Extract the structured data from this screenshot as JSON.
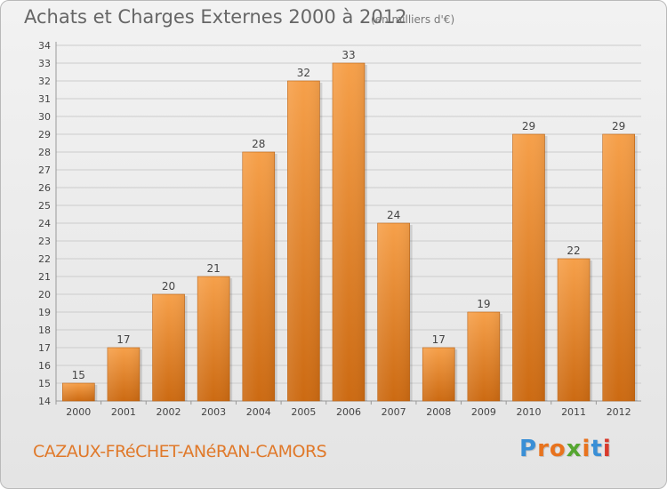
{
  "header": {
    "title": "Achats et Charges Externes 2000 à 2012",
    "subtitle": "(en milliers d'€)"
  },
  "footer": {
    "town": "CAZAUX-FRéCHET-ANéRAN-CAMORS",
    "logo_text": "Proxiti",
    "logo_colors": [
      "#3a8fd6",
      "#e8731e",
      "#e8731e",
      "#55a630",
      "#e8731e",
      "#3a8fd6",
      "#d83a2c"
    ]
  },
  "colors": {
    "bar_top": "#f6a04a",
    "bar_bottom": "#cc6a12",
    "grid": "#cccccc",
    "axis_text": "#444444"
  },
  "chart_data": {
    "type": "bar",
    "title": "Achats et Charges Externes 2000 à 2012",
    "subtitle": "(en milliers d'€)",
    "categories": [
      "2000",
      "2001",
      "2002",
      "2003",
      "2004",
      "2005",
      "2006",
      "2007",
      "2008",
      "2009",
      "2010",
      "2011",
      "2012"
    ],
    "values": [
      15,
      17,
      20,
      21,
      28,
      32,
      33,
      24,
      17,
      19,
      29,
      22,
      29
    ],
    "ylim": [
      14,
      34
    ],
    "ytick_step": 1,
    "grid": true,
    "xlabel": "",
    "ylabel": ""
  }
}
